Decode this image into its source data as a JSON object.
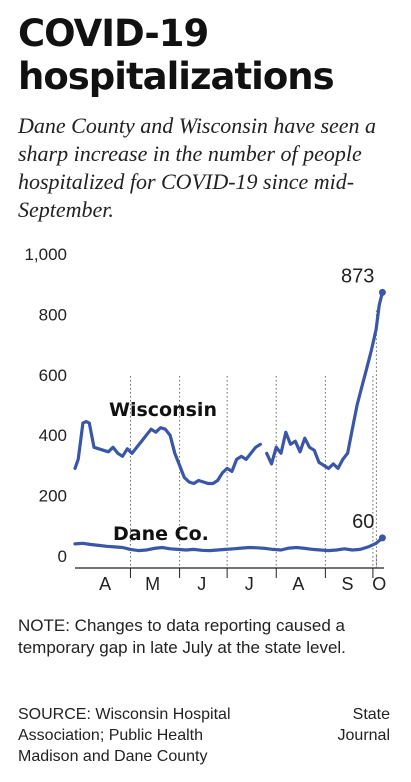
{
  "header": {
    "title_line1": "COVID-19",
    "title_line2": "hospitalizations",
    "subtitle": "Dane County and Wisconsin have seen a sharp increase in the number of people hospitalized for COVID-19 since mid-September."
  },
  "footer": {
    "note": "NOTE: Changes to data reporting caused a temporary gap in late July at the state level.",
    "source": "SOURCE: Wisconsin Hospital Association; Public Health Madison and Dane County",
    "credit": "State Journal"
  },
  "chart_data": {
    "type": "line",
    "title": "",
    "xlabel": "",
    "ylabel": "",
    "ylim": [
      0,
      1000
    ],
    "yticks": [
      0,
      200,
      400,
      600,
      800,
      1000
    ],
    "ytick_labels": [
      "0",
      "200",
      "400",
      "600",
      "800",
      "1,000"
    ],
    "xlim": [
      "2020-03-27",
      "2020-10-08"
    ],
    "month_ticks": [
      {
        "label": "A",
        "date": "2020-04-15"
      },
      {
        "label": "M",
        "date": "2020-05-15"
      },
      {
        "label": "J",
        "date": "2020-06-15"
      },
      {
        "label": "J",
        "date": "2020-07-15"
      },
      {
        "label": "A",
        "date": "2020-08-15"
      },
      {
        "label": "S",
        "date": "2020-09-15"
      },
      {
        "label": "O",
        "date": "2020-10-05"
      }
    ],
    "month_boundaries": [
      "2020-05-01",
      "2020-06-01",
      "2020-07-01",
      "2020-08-01",
      "2020-09-01",
      "2020-10-01"
    ],
    "color": "#3a57a7",
    "grid": false,
    "series": [
      {
        "name": "Wisconsin",
        "segments": [
          {
            "x": [
              "2020-03-27",
              "2020-03-29",
              "2020-04-01",
              "2020-04-03",
              "2020-04-05",
              "2020-04-08",
              "2020-04-11",
              "2020-04-14",
              "2020-04-17",
              "2020-04-20",
              "2020-04-23",
              "2020-04-26",
              "2020-04-29",
              "2020-05-02",
              "2020-05-05",
              "2020-05-08",
              "2020-05-11",
              "2020-05-14",
              "2020-05-17",
              "2020-05-20",
              "2020-05-23",
              "2020-05-26",
              "2020-05-29",
              "2020-06-01",
              "2020-06-04",
              "2020-06-07",
              "2020-06-10",
              "2020-06-13",
              "2020-06-16",
              "2020-06-19",
              "2020-06-22",
              "2020-06-25",
              "2020-06-28",
              "2020-07-01",
              "2020-07-04",
              "2020-07-07",
              "2020-07-10",
              "2020-07-13",
              "2020-07-16",
              "2020-07-19",
              "2020-07-22"
            ],
            "y": [
              290,
              320,
              440,
              445,
              440,
              360,
              355,
              350,
              345,
              360,
              340,
              330,
              355,
              340,
              360,
              380,
              400,
              420,
              410,
              425,
              420,
              400,
              340,
              300,
              260,
              245,
              240,
              250,
              245,
              240,
              240,
              250,
              275,
              290,
              280,
              320,
              330,
              320,
              340,
              360,
              370
            ]
          },
          {
            "x": [
              "2020-07-26",
              "2020-07-29",
              "2020-08-01",
              "2020-08-04",
              "2020-08-07",
              "2020-08-10",
              "2020-08-13",
              "2020-08-16",
              "2020-08-19",
              "2020-08-22",
              "2020-08-25",
              "2020-08-28",
              "2020-08-31",
              "2020-09-03",
              "2020-09-06",
              "2020-09-09",
              "2020-09-12",
              "2020-09-15",
              "2020-09-18",
              "2020-09-21",
              "2020-09-24",
              "2020-09-27",
              "2020-09-30",
              "2020-10-03",
              "2020-10-05",
              "2020-10-07"
            ],
            "y": [
              340,
              305,
              360,
              340,
              410,
              370,
              380,
              345,
              390,
              360,
              350,
              310,
              300,
              290,
              305,
              290,
              320,
              340,
              420,
              500,
              560,
              620,
              680,
              750,
              830,
              873
            ]
          }
        ],
        "end_label": 873
      },
      {
        "name": "Dane Co.",
        "x": [
          "2020-03-27",
          "2020-04-01",
          "2020-04-06",
          "2020-04-11",
          "2020-04-16",
          "2020-04-21",
          "2020-04-26",
          "2020-05-01",
          "2020-05-06",
          "2020-05-11",
          "2020-05-16",
          "2020-05-21",
          "2020-05-26",
          "2020-05-31",
          "2020-06-05",
          "2020-06-10",
          "2020-06-15",
          "2020-06-20",
          "2020-06-25",
          "2020-06-30",
          "2020-07-05",
          "2020-07-10",
          "2020-07-15",
          "2020-07-20",
          "2020-07-25",
          "2020-07-30",
          "2020-08-04",
          "2020-08-09",
          "2020-08-14",
          "2020-08-19",
          "2020-08-24",
          "2020-08-29",
          "2020-09-03",
          "2020-09-08",
          "2020-09-13",
          "2020-09-18",
          "2020-09-23",
          "2020-09-28",
          "2020-10-03",
          "2020-10-07"
        ],
        "y": [
          40,
          42,
          38,
          35,
          32,
          30,
          28,
          22,
          18,
          20,
          25,
          28,
          24,
          22,
          20,
          22,
          19,
          18,
          20,
          22,
          24,
          26,
          28,
          27,
          25,
          22,
          20,
          26,
          28,
          25,
          22,
          20,
          18,
          20,
          24,
          20,
          22,
          30,
          42,
          60
        ],
        "end_label": 60
      }
    ]
  }
}
